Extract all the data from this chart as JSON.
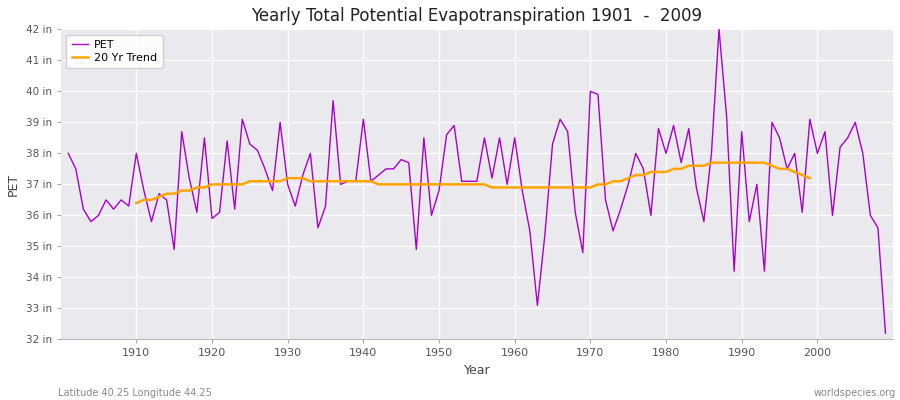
{
  "title": "Yearly Total Potential Evapotranspiration 1901  -  2009",
  "xlabel": "Year",
  "ylabel": "PET",
  "subtitle_left": "Latitude 40.25 Longitude 44.25",
  "subtitle_right": "worldspecies.org",
  "pet_color": "#AA00CC",
  "trend_color": "#FFA500",
  "background_color": "#EAEAEE",
  "fig_background": "#FFFFFF",
  "ylim": [
    32,
    42
  ],
  "xlim": [
    1900,
    2010
  ],
  "years": [
    1901,
    1902,
    1903,
    1904,
    1905,
    1906,
    1907,
    1908,
    1909,
    1910,
    1911,
    1912,
    1913,
    1914,
    1915,
    1916,
    1917,
    1918,
    1919,
    1920,
    1921,
    1922,
    1923,
    1924,
    1925,
    1926,
    1927,
    1928,
    1929,
    1930,
    1931,
    1932,
    1933,
    1934,
    1935,
    1936,
    1937,
    1938,
    1939,
    1940,
    1941,
    1942,
    1943,
    1944,
    1945,
    1946,
    1947,
    1948,
    1949,
    1950,
    1951,
    1952,
    1953,
    1954,
    1955,
    1956,
    1957,
    1958,
    1959,
    1960,
    1961,
    1962,
    1963,
    1964,
    1965,
    1966,
    1967,
    1968,
    1969,
    1970,
    1971,
    1972,
    1973,
    1974,
    1975,
    1976,
    1977,
    1978,
    1979,
    1980,
    1981,
    1982,
    1983,
    1984,
    1985,
    1986,
    1987,
    1988,
    1989,
    1990,
    1991,
    1992,
    1993,
    1994,
    1995,
    1996,
    1997,
    1998,
    1999,
    2000,
    2001,
    2002,
    2003,
    2004,
    2005,
    2006,
    2007,
    2008,
    2009
  ],
  "pet_values": [
    38.0,
    37.5,
    36.2,
    35.8,
    36.0,
    36.5,
    36.2,
    36.5,
    36.3,
    38.0,
    36.8,
    35.8,
    36.7,
    36.5,
    34.9,
    38.7,
    37.2,
    36.1,
    38.5,
    35.9,
    36.1,
    38.4,
    36.2,
    39.1,
    38.3,
    38.1,
    37.5,
    36.8,
    39.0,
    37.0,
    36.3,
    37.3,
    38.0,
    35.6,
    36.3,
    39.7,
    37.0,
    37.1,
    37.1,
    39.1,
    37.1,
    37.3,
    37.5,
    37.5,
    37.8,
    37.7,
    34.9,
    38.5,
    36.0,
    36.8,
    38.6,
    38.9,
    37.1,
    37.1,
    37.1,
    38.5,
    37.2,
    38.5,
    37.0,
    38.5,
    36.8,
    35.5,
    33.1,
    35.4,
    38.3,
    39.1,
    38.7,
    36.1,
    34.8,
    40.0,
    39.9,
    36.5,
    35.5,
    36.2,
    37.0,
    38.0,
    37.5,
    36.0,
    38.8,
    38.0,
    38.9,
    37.7,
    38.8,
    36.9,
    35.8,
    38.0,
    42.0,
    39.2,
    34.2,
    38.7,
    35.8,
    37.0,
    34.2,
    39.0,
    38.5,
    37.5,
    38.0,
    36.1,
    39.1,
    38.0,
    38.7,
    36.0,
    38.2,
    38.5,
    39.0,
    38.0,
    36.0,
    35.6,
    32.2
  ],
  "trend_values": [
    null,
    null,
    null,
    null,
    null,
    null,
    null,
    null,
    null,
    36.4,
    36.5,
    36.5,
    36.6,
    36.7,
    36.7,
    36.8,
    36.8,
    36.9,
    36.9,
    37.0,
    37.0,
    37.0,
    37.0,
    37.0,
    37.1,
    37.1,
    37.1,
    37.1,
    37.1,
    37.2,
    37.2,
    37.2,
    37.1,
    37.1,
    37.1,
    37.1,
    37.1,
    37.1,
    37.1,
    37.1,
    37.1,
    37.0,
    37.0,
    37.0,
    37.0,
    37.0,
    37.0,
    37.0,
    37.0,
    37.0,
    37.0,
    37.0,
    37.0,
    37.0,
    37.0,
    37.0,
    36.9,
    36.9,
    36.9,
    36.9,
    36.9,
    36.9,
    36.9,
    36.9,
    36.9,
    36.9,
    36.9,
    36.9,
    36.9,
    36.9,
    37.0,
    37.0,
    37.1,
    37.1,
    37.2,
    37.3,
    37.3,
    37.4,
    37.4,
    37.4,
    37.5,
    37.5,
    37.6,
    37.6,
    37.6,
    37.7,
    37.7,
    37.7,
    37.7,
    37.7,
    37.7,
    37.7,
    37.7,
    37.6,
    37.5,
    37.5,
    37.4,
    37.3,
    37.2,
    null,
    null,
    null,
    null,
    null,
    null,
    null,
    null,
    null,
    null
  ]
}
